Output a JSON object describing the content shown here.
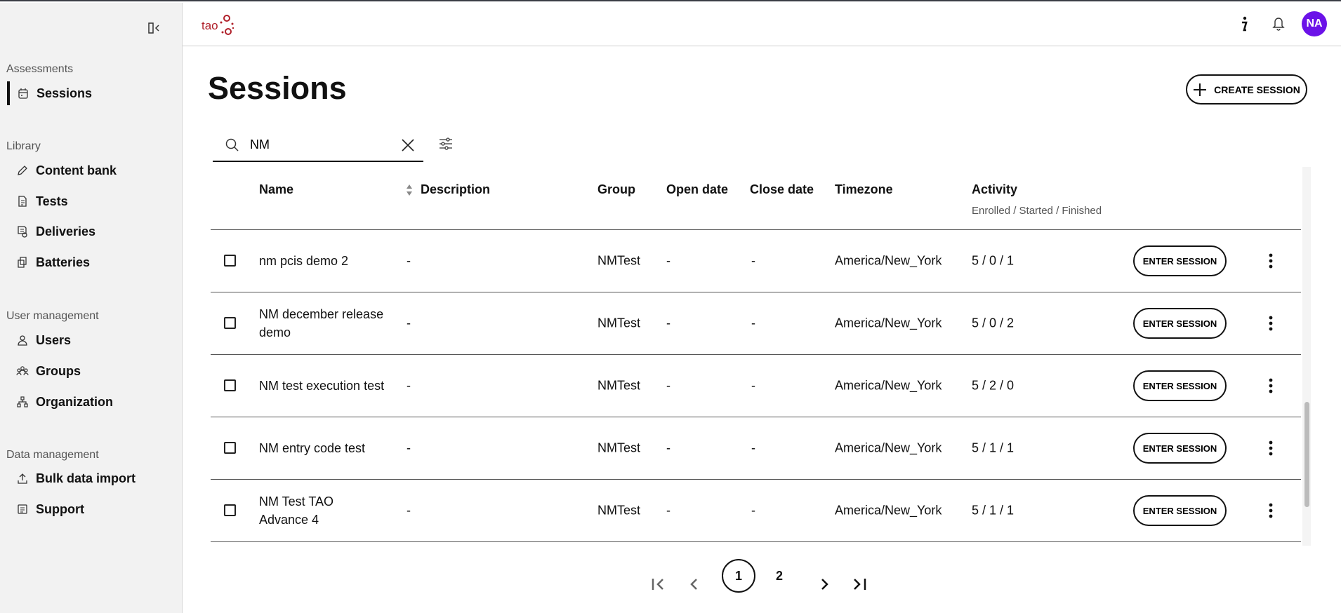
{
  "sidebar": {
    "sections": [
      {
        "label": "Assessments",
        "items": [
          {
            "label": "Sessions",
            "icon": "calendar-icon",
            "active": true
          }
        ]
      },
      {
        "label": "Library",
        "items": [
          {
            "label": "Content bank",
            "icon": "pencil-icon"
          },
          {
            "label": "Tests",
            "icon": "document-icon"
          },
          {
            "label": "Deliveries",
            "icon": "delivery-icon"
          },
          {
            "label": "Batteries",
            "icon": "battery-icon"
          }
        ]
      },
      {
        "label": "User management",
        "items": [
          {
            "label": "Users",
            "icon": "user-icon"
          },
          {
            "label": "Groups",
            "icon": "groups-icon"
          },
          {
            "label": "Organization",
            "icon": "organization-icon"
          }
        ]
      },
      {
        "label": "Data management",
        "items": [
          {
            "label": "Bulk data import",
            "icon": "upload-icon"
          },
          {
            "label": "Support",
            "icon": "support-icon"
          }
        ]
      }
    ]
  },
  "header": {
    "logo_text": "tao",
    "avatar": "NA",
    "avatar_color": "#6b12e8"
  },
  "page": {
    "title": "Sessions",
    "create_label": "CREATE SESSION"
  },
  "search": {
    "value": "NM"
  },
  "table": {
    "columns": [
      "Name",
      "Description",
      "Group",
      "Open date",
      "Close date",
      "Timezone",
      "Activity"
    ],
    "activity_sub": "Enrolled / Started / Finished",
    "enter_label": "ENTER SESSION",
    "rows": [
      {
        "name": "nm pcis demo 2",
        "description": "-",
        "group": "NMTest",
        "open": "-",
        "close": "-",
        "timezone": "America/New_York",
        "activity": "5 / 0 / 1"
      },
      {
        "name": "NM december release demo",
        "description": "-",
        "group": "NMTest",
        "open": "-",
        "close": "-",
        "timezone": "America/New_York",
        "activity": "5 / 0 / 2"
      },
      {
        "name": "NM test execution test",
        "description": "-",
        "group": "NMTest",
        "open": "-",
        "close": "-",
        "timezone": "America/New_York",
        "activity": "5 / 2 / 0"
      },
      {
        "name": "NM entry code test",
        "description": "-",
        "group": "NMTest",
        "open": "-",
        "close": "-",
        "timezone": "America/New_York",
        "activity": "5 / 1 / 1"
      },
      {
        "name": "NM Test TAO Advance 4",
        "description": "-",
        "group": "NMTest",
        "open": "-",
        "close": "-",
        "timezone": "America/New_York",
        "activity": "5 / 1 / 1"
      }
    ]
  },
  "pagination": {
    "pages": [
      "1",
      "2"
    ],
    "current": "1"
  }
}
